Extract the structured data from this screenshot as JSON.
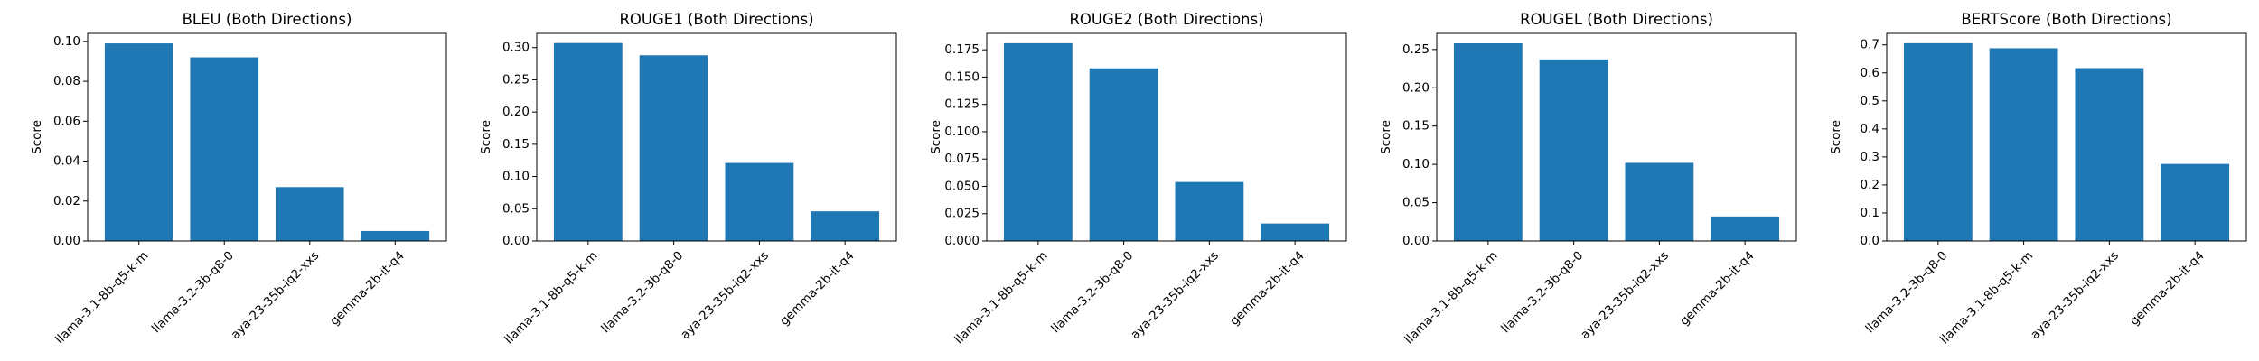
{
  "chart_data": [
    {
      "type": "bar",
      "title": "BLEU (Both Directions)",
      "xlabel": "",
      "ylabel": "Score",
      "categories": [
        "llama-3.1-8b-q5-k-m",
        "llama-3.2-3b-q8-0",
        "aya-23-35b-iq2-xxs",
        "gemma-2b-it-q4"
      ],
      "values": [
        0.099,
        0.092,
        0.027,
        0.005
      ],
      "ylim": [
        0,
        0.104
      ],
      "yticks": [
        0.0,
        0.02,
        0.04,
        0.06,
        0.08,
        0.1
      ],
      "ytick_labels": [
        "0.00",
        "0.02",
        "0.04",
        "0.06",
        "0.08",
        "0.10"
      ],
      "color": "#1f77b4",
      "grid": false,
      "legend": "none"
    },
    {
      "type": "bar",
      "title": "ROUGE1 (Both Directions)",
      "xlabel": "",
      "ylabel": "Score",
      "categories": [
        "llama-3.1-8b-q5-k-m",
        "llama-3.2-3b-q8-0",
        "aya-23-35b-iq2-xxs",
        "gemma-2b-it-q4"
      ],
      "values": [
        0.307,
        0.288,
        0.121,
        0.046
      ],
      "ylim": [
        0,
        0.322
      ],
      "yticks": [
        0.0,
        0.05,
        0.1,
        0.15,
        0.2,
        0.25,
        0.3
      ],
      "ytick_labels": [
        "0.00",
        "0.05",
        "0.10",
        "0.15",
        "0.20",
        "0.25",
        "0.30"
      ],
      "color": "#1f77b4",
      "grid": false,
      "legend": "none"
    },
    {
      "type": "bar",
      "title": "ROUGE2 (Both Directions)",
      "xlabel": "",
      "ylabel": "Score",
      "categories": [
        "llama-3.1-8b-q5-k-m",
        "llama-3.2-3b-q8-0",
        "aya-23-35b-iq2-xxs",
        "gemma-2b-it-q4"
      ],
      "values": [
        0.181,
        0.158,
        0.054,
        0.016
      ],
      "ylim": [
        0,
        0.19
      ],
      "yticks": [
        0.0,
        0.025,
        0.05,
        0.075,
        0.1,
        0.125,
        0.15,
        0.175
      ],
      "ytick_labels": [
        "0.000",
        "0.025",
        "0.050",
        "0.075",
        "0.100",
        "0.125",
        "0.150",
        "0.175"
      ],
      "color": "#1f77b4",
      "grid": false,
      "legend": "none"
    },
    {
      "type": "bar",
      "title": "ROUGEL (Both Directions)",
      "xlabel": "",
      "ylabel": "Score",
      "categories": [
        "llama-3.1-8b-q5-k-m",
        "llama-3.2-3b-q8-0",
        "aya-23-35b-iq2-xxs",
        "gemma-2b-it-q4"
      ],
      "values": [
        0.258,
        0.237,
        0.102,
        0.032
      ],
      "ylim": [
        0,
        0.271
      ],
      "yticks": [
        0.0,
        0.05,
        0.1,
        0.15,
        0.2,
        0.25
      ],
      "ytick_labels": [
        "0.00",
        "0.05",
        "0.10",
        "0.15",
        "0.20",
        "0.25"
      ],
      "color": "#1f77b4",
      "grid": false,
      "legend": "none"
    },
    {
      "type": "bar",
      "title": "BERTScore (Both Directions)",
      "xlabel": "",
      "ylabel": "Score",
      "categories": [
        "llama-3.2-3b-q8-0",
        "llama-3.1-8b-q5-k-m",
        "aya-23-35b-iq2-xxs",
        "gemma-2b-it-q4"
      ],
      "values": [
        0.706,
        0.688,
        0.617,
        0.275
      ],
      "ylim": [
        0,
        0.741
      ],
      "yticks": [
        0.0,
        0.1,
        0.2,
        0.3,
        0.4,
        0.5,
        0.6,
        0.7
      ],
      "ytick_labels": [
        "0.0",
        "0.1",
        "0.2",
        "0.3",
        "0.4",
        "0.5",
        "0.6",
        "0.7"
      ],
      "color": "#1f77b4",
      "grid": false,
      "legend": "none"
    }
  ]
}
